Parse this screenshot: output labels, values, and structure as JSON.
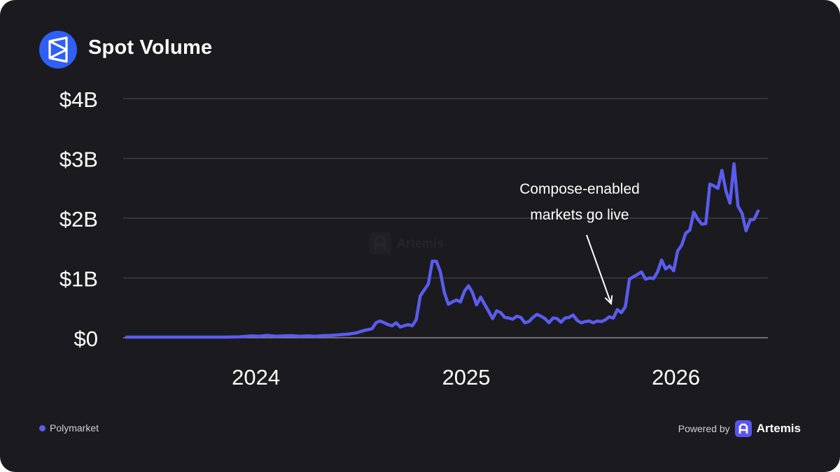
{
  "header": {
    "title": "Spot Volume",
    "logo_icon": "polymarket-logo-icon"
  },
  "legend": {
    "items": [
      {
        "label": "Polymarket",
        "color": "#5a5cf0"
      }
    ]
  },
  "footer": {
    "powered_by": "Powered by",
    "brand": "Artemis",
    "brand_icon": "artemis-logo-icon"
  },
  "watermark": {
    "text": "Artemis"
  },
  "colors": {
    "background": "#1b1b1f",
    "line": "#5a5cf0",
    "grid": "#3c3c44",
    "text": "#ffffff",
    "logo_bg": "#2f5ff5"
  },
  "chart_data": {
    "type": "line",
    "title": "Spot Volume",
    "xlabel": "",
    "ylabel": "",
    "x_tick_labels": [
      "2024",
      "2025",
      "2026"
    ],
    "y_tick_labels": [
      "$0",
      "$1B",
      "$2B",
      "$3B",
      "$4B"
    ],
    "y_ticks": [
      0,
      1000000000,
      2000000000,
      3000000000,
      4000000000
    ],
    "ylim": [
      0,
      4000000000
    ],
    "xlim": [
      "2023-05-15",
      "2026-06-10"
    ],
    "grid": true,
    "legend_position": "bottom-left",
    "annotation": {
      "text_lines": [
        "Compose-enabled",
        "markets go live"
      ],
      "x": "2025-09-15",
      "y": 500000000
    },
    "series": [
      {
        "name": "Polymarket",
        "color": "#5a5cf0",
        "points": [
          [
            "2023-05-21",
            10000000
          ],
          [
            "2023-06-18",
            10000000
          ],
          [
            "2023-07-16",
            10000000
          ],
          [
            "2023-08-13",
            10000000
          ],
          [
            "2023-09-10",
            10000000
          ],
          [
            "2023-10-08",
            10000000
          ],
          [
            "2023-11-05",
            10000000
          ],
          [
            "2023-12-03",
            15000000
          ],
          [
            "2023-12-24",
            30000000
          ],
          [
            "2024-01-07",
            25000000
          ],
          [
            "2024-01-21",
            40000000
          ],
          [
            "2024-02-04",
            25000000
          ],
          [
            "2024-02-18",
            30000000
          ],
          [
            "2024-03-03",
            35000000
          ],
          [
            "2024-03-17",
            25000000
          ],
          [
            "2024-03-31",
            30000000
          ],
          [
            "2024-04-14",
            25000000
          ],
          [
            "2024-04-28",
            35000000
          ],
          [
            "2024-05-12",
            40000000
          ],
          [
            "2024-05-26",
            50000000
          ],
          [
            "2024-06-09",
            60000000
          ],
          [
            "2024-06-23",
            80000000
          ],
          [
            "2024-07-07",
            120000000
          ],
          [
            "2024-07-21",
            150000000
          ],
          [
            "2024-07-28",
            250000000
          ],
          [
            "2024-08-04",
            280000000
          ],
          [
            "2024-08-11",
            250000000
          ],
          [
            "2024-08-18",
            220000000
          ],
          [
            "2024-08-25",
            200000000
          ],
          [
            "2024-09-01",
            250000000
          ],
          [
            "2024-09-08",
            180000000
          ],
          [
            "2024-09-15",
            200000000
          ],
          [
            "2024-09-22",
            220000000
          ],
          [
            "2024-09-29",
            200000000
          ],
          [
            "2024-10-06",
            300000000
          ],
          [
            "2024-10-13",
            700000000
          ],
          [
            "2024-10-20",
            800000000
          ],
          [
            "2024-10-27",
            900000000
          ],
          [
            "2024-11-03",
            1280000000
          ],
          [
            "2024-11-10",
            1280000000
          ],
          [
            "2024-11-17",
            1100000000
          ],
          [
            "2024-11-24",
            750000000
          ],
          [
            "2024-12-01",
            560000000
          ],
          [
            "2024-12-08",
            600000000
          ],
          [
            "2024-12-15",
            630000000
          ],
          [
            "2024-12-22",
            600000000
          ],
          [
            "2024-12-29",
            780000000
          ],
          [
            "2025-01-05",
            870000000
          ],
          [
            "2025-01-12",
            750000000
          ],
          [
            "2025-01-19",
            550000000
          ],
          [
            "2025-01-26",
            680000000
          ],
          [
            "2025-02-02",
            560000000
          ],
          [
            "2025-02-09",
            440000000
          ],
          [
            "2025-02-16",
            320000000
          ],
          [
            "2025-02-23",
            450000000
          ],
          [
            "2025-03-02",
            420000000
          ],
          [
            "2025-03-09",
            340000000
          ],
          [
            "2025-03-16",
            330000000
          ],
          [
            "2025-03-23",
            310000000
          ],
          [
            "2025-03-30",
            360000000
          ],
          [
            "2025-04-06",
            340000000
          ],
          [
            "2025-04-13",
            250000000
          ],
          [
            "2025-04-20",
            270000000
          ],
          [
            "2025-04-27",
            340000000
          ],
          [
            "2025-05-04",
            390000000
          ],
          [
            "2025-05-11",
            360000000
          ],
          [
            "2025-05-18",
            320000000
          ],
          [
            "2025-05-25",
            250000000
          ],
          [
            "2025-06-01",
            330000000
          ],
          [
            "2025-06-08",
            320000000
          ],
          [
            "2025-06-15",
            260000000
          ],
          [
            "2025-06-22",
            330000000
          ],
          [
            "2025-06-29",
            340000000
          ],
          [
            "2025-07-06",
            380000000
          ],
          [
            "2025-07-13",
            290000000
          ],
          [
            "2025-07-20",
            250000000
          ],
          [
            "2025-07-27",
            270000000
          ],
          [
            "2025-08-03",
            280000000
          ],
          [
            "2025-08-10",
            250000000
          ],
          [
            "2025-08-17",
            280000000
          ],
          [
            "2025-08-24",
            270000000
          ],
          [
            "2025-08-31",
            300000000
          ],
          [
            "2025-09-07",
            350000000
          ],
          [
            "2025-09-14",
            330000000
          ],
          [
            "2025-09-21",
            470000000
          ],
          [
            "2025-09-28",
            420000000
          ],
          [
            "2025-10-05",
            520000000
          ],
          [
            "2025-10-12",
            980000000
          ],
          [
            "2025-10-19",
            1020000000
          ],
          [
            "2025-10-26",
            1060000000
          ],
          [
            "2025-11-02",
            1100000000
          ],
          [
            "2025-11-09",
            980000000
          ],
          [
            "2025-11-16",
            1000000000
          ],
          [
            "2025-11-23",
            990000000
          ],
          [
            "2025-11-30",
            1100000000
          ],
          [
            "2025-12-07",
            1300000000
          ],
          [
            "2025-12-14",
            1150000000
          ],
          [
            "2025-12-21",
            1200000000
          ],
          [
            "2025-12-28",
            1120000000
          ],
          [
            "2026-01-04",
            1450000000
          ],
          [
            "2026-01-11",
            1550000000
          ],
          [
            "2026-01-18",
            1750000000
          ],
          [
            "2026-01-25",
            1800000000
          ],
          [
            "2026-02-01",
            2100000000
          ],
          [
            "2026-02-08",
            1980000000
          ],
          [
            "2026-02-15",
            1900000000
          ],
          [
            "2026-02-22",
            1910000000
          ],
          [
            "2026-03-01",
            2570000000
          ],
          [
            "2026-03-08",
            2540000000
          ],
          [
            "2026-03-15",
            2500000000
          ],
          [
            "2026-03-22",
            2800000000
          ],
          [
            "2026-03-29",
            2450000000
          ],
          [
            "2026-04-05",
            2250000000
          ],
          [
            "2026-04-12",
            2910000000
          ],
          [
            "2026-04-19",
            2200000000
          ],
          [
            "2026-04-26",
            2080000000
          ],
          [
            "2026-05-03",
            1790000000
          ],
          [
            "2026-05-10",
            1970000000
          ],
          [
            "2026-05-17",
            1980000000
          ],
          [
            "2026-05-24",
            2120000000
          ]
        ]
      }
    ]
  }
}
